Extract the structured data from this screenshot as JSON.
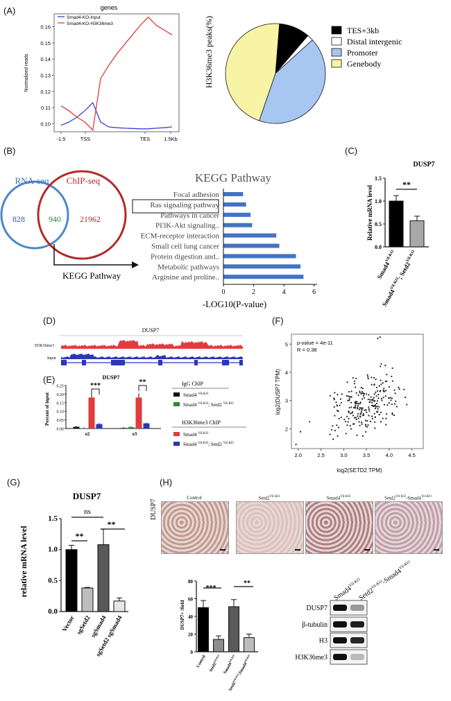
{
  "panels": {
    "A": "(A)",
    "B": "(B)",
    "C": "(C)",
    "D": "(D)",
    "E": "(E)",
    "F": "(F)",
    "G": "(G)",
    "H": "(H)"
  },
  "colors": {
    "blue": "#3a3fd0",
    "red": "#e23b3b",
    "pie_black": "#000000",
    "pie_white": "#ffffff",
    "pie_blue": "#a7c7f2",
    "pie_yellow": "#f8f4a6",
    "kegg_bar": "#4472c4",
    "venn_blue": "#4a86c8",
    "venn_red": "#b22a2a"
  },
  "chart_data": [
    {
      "id": "A-profile",
      "type": "line",
      "title": "genes",
      "ylabel": "Normalized reads",
      "xticks": [
        "-1.5",
        "TSS",
        "TES",
        "1.5Kb"
      ],
      "yticks": [
        "0.10",
        "0.11",
        "0.12",
        "0.13",
        "0.14",
        "0.15",
        "0.16"
      ],
      "ylim": [
        0.095,
        0.168
      ],
      "series": [
        {
          "name": "Smad4-KO-Input",
          "values": [
            0.099,
            0.101,
            0.104,
            0.108,
            0.113,
            0.101,
            0.098,
            0.0975,
            0.0972,
            0.097,
            0.0968,
            0.0968,
            0.0972,
            0.0975,
            0.098
          ]
        },
        {
          "name": "Smad4-KO-H3K36me3",
          "values": [
            0.111,
            0.108,
            0.104,
            0.101,
            0.096,
            0.128,
            0.136,
            0.143,
            0.149,
            0.155,
            0.161,
            0.166,
            0.161,
            0.158,
            0.155
          ]
        }
      ]
    },
    {
      "id": "A-pie",
      "type": "pie",
      "ylabel": "H3K36me3 peaks(%)",
      "slices": [
        {
          "label": "TES+3kb",
          "value": 10
        },
        {
          "label": "Distal intergenic",
          "value": 2
        },
        {
          "label": "Promoter",
          "value": 42
        },
        {
          "label": "Genebody",
          "value": 46
        }
      ]
    },
    {
      "id": "B-kegg",
      "type": "bar",
      "title": "KEGG Pathway",
      "xlabel": "-LOG10(P-value)",
      "xticks": [
        "0",
        "2",
        "4",
        "6"
      ],
      "xlim": [
        0,
        6.2
      ],
      "categories": [
        "Focal adhesion",
        "Ras signaling pathway",
        "Pathways in cancer",
        "PI3K-Akt signaling..",
        "ECM-receptor interaction",
        "Small cell lung cancer",
        "Protein digestion and..",
        "Metabolic pathways",
        "Arginine and proline.."
      ],
      "values": [
        1.3,
        1.5,
        1.8,
        1.9,
        3.5,
        3.7,
        4.8,
        5.1,
        5.3
      ]
    },
    {
      "id": "C-dusp7",
      "type": "bar",
      "title": "DUSP7",
      "ylabel": "Relative mRNA level",
      "ylim": [
        0,
        1.5
      ],
      "yticks": [
        "0.0",
        "0.5",
        "1.0",
        "1.5"
      ],
      "categories": [
        "Smad4 Vil-KO",
        "Smad4 Vil-KO; Setd2 Vil-KO"
      ],
      "values": [
        1.0,
        0.57
      ],
      "errors": [
        0.12,
        0.1
      ],
      "significance": "**"
    },
    {
      "id": "E-chip",
      "type": "bar",
      "title": "DUSP7",
      "ylabel": "Percent of input",
      "ylim": [
        0,
        0.25
      ],
      "yticks": [
        "0.00",
        "0.05",
        "0.10",
        "0.15",
        "0.20",
        "0.25"
      ],
      "categories": [
        "e2",
        "e3"
      ],
      "series": [
        {
          "name": "IgG Smad4",
          "values": [
            0.01,
            0.003
          ]
        },
        {
          "name": "IgG Smad4;Setd2",
          "values": [
            0.002,
            0.008
          ]
        },
        {
          "name": "H3K36me3 Smad4",
          "values": [
            0.18,
            0.18
          ]
        },
        {
          "name": "H3K36me3 Smad4;Setd2",
          "values": [
            0.026,
            0.03
          ]
        }
      ],
      "significance": [
        "***",
        "**"
      ]
    },
    {
      "id": "F-scatter",
      "type": "scatter",
      "xlabel": "log2(SETD2 TPM)",
      "ylabel": "log2(DUSP7 TPM)",
      "xticks": [
        "2.0",
        "2.5",
        "3.0",
        "3.5",
        "4.0",
        "4.5"
      ],
      "yticks": [
        "2",
        "3",
        "4",
        "5"
      ],
      "xlim": [
        1.85,
        4.75
      ],
      "ylim": [
        1.3,
        5.35
      ],
      "annotation": [
        "p-value = 4e-11",
        "R = 0.38"
      ],
      "slope": 0.55,
      "intercept": 1.0
    },
    {
      "id": "G-dusp7",
      "type": "bar",
      "title": "DUSP7",
      "ylabel": "relative mRNA level",
      "ylim": [
        0,
        1.5
      ],
      "yticks": [
        "0.0",
        "0.5",
        "1.0",
        "1.5"
      ],
      "categories": [
        "Vector",
        "sgSetd2",
        "sgSmad4",
        "sgSetd2 sgSmad4"
      ],
      "values": [
        1.0,
        0.38,
        1.08,
        0.17
      ],
      "errors": [
        0.07,
        0.01,
        0.25,
        0.05
      ],
      "significance": [
        "ns",
        "**",
        "**"
      ]
    },
    {
      "id": "H-ihc-quant",
      "type": "bar",
      "ylabel": "DUSP7+ /field",
      "ylim": [
        0,
        80
      ],
      "yticks": [
        "0",
        "20",
        "40",
        "60",
        "80"
      ],
      "categories": [
        "Control",
        "Setd2 Vil-KO",
        "Smad4 Vil-KO",
        "Setd2 Vil-KO;Smad4 Vil-KO"
      ],
      "values": [
        50,
        14,
        51,
        16
      ],
      "errors": [
        8,
        4,
        8,
        4
      ],
      "significance": [
        "***",
        "**"
      ]
    }
  ],
  "venn": {
    "left_title": "RNA-seq",
    "right_title": "ChIP-seq",
    "left_only": "828",
    "overlap": "940",
    "right_only": "21962",
    "arrow_label": "KEGG Pathway"
  },
  "track": {
    "title": "DUSP7",
    "rows": [
      "H3K36me3",
      "Input"
    ]
  },
  "legend_A": {
    "input": "Smad4-KO-Input",
    "h3k": "Smad4-KO-H3K36me3"
  },
  "legend_E": {
    "igg_title": "IgG ChIP",
    "h3k_title": "H3K36me3 ChIP",
    "smad4": "Smad4 ",
    "vilko": "Vil-KO",
    "setd2": "; Setd2 "
  },
  "labelsC": {
    "a_main": "Smad4",
    "a_sup": "Vil-KO",
    "b_main": "Smad4",
    "b_sup": "Vil-KO",
    "b_main2": "; Setd2",
    "b_sup2": "Vil-KO"
  },
  "H": {
    "ylabel_side": "DUSP7",
    "images": [
      {
        "label": "Control",
        "sup": ""
      },
      {
        "label": "Setd2",
        "sup": "Vil-KO"
      },
      {
        "label": "Smad4",
        "sup": "Vil-KO"
      },
      {
        "label": "Setd2",
        "sup": "Vil-KO",
        "label2": "-Smad4",
        "sup2": "Vil-KO"
      }
    ],
    "blot_cols": [
      {
        "main": "Smad4",
        "sup": "Vil-KO"
      },
      {
        "main": "Setd2",
        "sup": "Vil-KO",
        "main2": "-Smad4",
        "sup2": "Vil-KO"
      }
    ],
    "blot_rows": [
      "DUSP7",
      "β-tubulin",
      "H3",
      "H3K36me3"
    ],
    "quant_labels": [
      {
        "main": "Control",
        "sup": ""
      },
      {
        "main": "Setd2",
        "sup": "Vil-KO"
      },
      {
        "main": "Smad4",
        "sup": "Vil-KO"
      },
      {
        "main": "Setd2",
        "sup": "Vil-KO",
        "main2": ";Smad4",
        "sup2": "Vil-KO"
      }
    ]
  }
}
